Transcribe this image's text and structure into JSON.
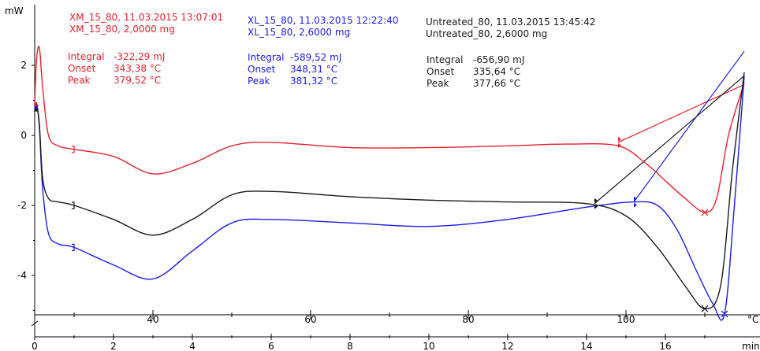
{
  "chart_data": {
    "type": "line",
    "title": "",
    "ylabel": "mW",
    "xlabel_time": "min",
    "xlabel_temp": "°C",
    "ylim": [
      -5.5,
      3.0
    ],
    "y_ticks": [
      "2",
      "0",
      "-2",
      "-4"
    ],
    "time_ticks": [
      "0",
      "2",
      "4",
      "6",
      "8",
      "10",
      "12",
      "14",
      "16"
    ],
    "temp_ticks": [
      "40",
      "60",
      "80",
      "100",
      "120",
      "140",
      "160",
      "180",
      "200",
      "220",
      "240",
      "260",
      "280",
      "300",
      "320",
      "340",
      "360",
      "380"
    ],
    "series": [
      {
        "color": "#e8202a",
        "header": [
          "XM_15_80, 11.03.2015 13:07:01",
          "XM_15_80, 2,0000 mg"
        ],
        "results": [
          {
            "label": "Integral",
            "value": "-322,29 mJ"
          },
          {
            "label": "Onset",
            "value": "343,38 °C"
          },
          {
            "label": "Peak",
            "value": "379,52 °C"
          }
        ],
        "x": [
          0,
          0.05,
          0.12,
          0.2,
          0.35,
          0.6,
          1.0,
          2.0,
          3.0,
          4.0,
          5.0,
          6.0,
          8.0,
          10.0,
          12.0,
          13.5,
          14.8,
          15.5,
          16.0,
          16.5,
          17.0,
          17.3,
          17.6,
          18.0
        ],
        "y": [
          0.9,
          2.2,
          2.5,
          1.4,
          0.0,
          -0.3,
          -0.4,
          -0.6,
          -1.1,
          -0.8,
          -0.3,
          -0.2,
          -0.35,
          -0.35,
          -0.3,
          -0.25,
          -0.3,
          -0.8,
          -1.3,
          -1.8,
          -2.2,
          -1.8,
          0.0,
          1.5
        ]
      },
      {
        "color": "#1a1aee",
        "header": [
          "XL_15_80, 11.03.2015 12:22:40",
          "XL_15_80, 2,6000 mg"
        ],
        "results": [
          {
            "label": "Integral",
            "value": "-589,52 mJ"
          },
          {
            "label": "Onset",
            "value": "348,31 °C"
          },
          {
            "label": "Peak",
            "value": "381,32 °C"
          }
        ],
        "x": [
          0,
          0.05,
          0.12,
          0.2,
          0.35,
          0.6,
          1.0,
          2.0,
          3.0,
          4.0,
          5.0,
          6.0,
          8.0,
          10.0,
          12.0,
          14.0,
          15.2,
          15.8,
          16.3,
          16.8,
          17.2,
          17.5,
          17.75,
          18.0
        ],
        "y": [
          0.8,
          0.9,
          0.2,
          -1.5,
          -2.8,
          -3.1,
          -3.2,
          -3.7,
          -4.1,
          -3.3,
          -2.5,
          -2.4,
          -2.5,
          -2.6,
          -2.4,
          -2.05,
          -1.9,
          -2.0,
          -2.7,
          -3.9,
          -4.8,
          -5.1,
          -2.0,
          1.7
        ]
      },
      {
        "color": "#1a1a1a",
        "header": [
          "Untreated_80, 11.03.2015 13:45:42",
          "Untreated_80, 2,6000 mg"
        ],
        "results": [
          {
            "label": "Integral",
            "value": "-656,90 mJ"
          },
          {
            "label": "Onset",
            "value": "335,64 °C"
          },
          {
            "label": "Peak",
            "value": "377,66 °C"
          }
        ],
        "x": [
          0,
          0.05,
          0.12,
          0.2,
          0.35,
          0.6,
          1.0,
          2.0,
          3.0,
          4.0,
          5.0,
          6.0,
          8.0,
          10.0,
          12.0,
          14.0,
          15.0,
          15.8,
          16.5,
          17.0,
          17.4,
          17.7,
          18.0
        ],
        "y": [
          0.75,
          0.85,
          0.3,
          -1.2,
          -1.8,
          -1.9,
          -2.0,
          -2.4,
          -2.85,
          -2.4,
          -1.7,
          -1.6,
          -1.75,
          -1.85,
          -1.9,
          -1.95,
          -2.3,
          -3.2,
          -4.3,
          -4.95,
          -4.3,
          -1.0,
          1.8
        ]
      }
    ],
    "baselines": [
      {
        "color": "#e8202a",
        "x": [
          14.8,
          18.0
        ],
        "y": [
          -0.2,
          1.45
        ]
      },
      {
        "color": "#1a1aee",
        "x": [
          15.2,
          18.0
        ],
        "y": [
          -1.9,
          2.4
        ]
      },
      {
        "color": "#1a1a1a",
        "x": [
          14.2,
          18.0
        ],
        "y": [
          -1.95,
          1.7
        ]
      }
    ]
  }
}
